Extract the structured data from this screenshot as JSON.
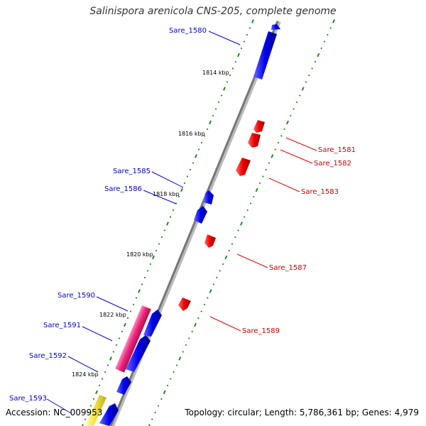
{
  "title": "Salinispora arenicola CNS-205, complete genome",
  "footer": {
    "accession": "Accession: NC_009953",
    "summary": "Topology: circular; Length: 5,786,361 bp; Genes: 4,979"
  },
  "colors": {
    "forward_cds": "#0000ee",
    "reverse_cds": "#ee0000",
    "rna": "#ee2277",
    "other": "#f0e040",
    "backbone": "#888888",
    "ticks": "#228822"
  },
  "kbp_labels": [
    "1814 kbp",
    "1816 kbp",
    "1818 kbp",
    "1820 kbp",
    "1822 kbp",
    "1824 kbp"
  ],
  "genes": [
    {
      "name": "Sare_1580",
      "strand": "forward"
    },
    {
      "name": "Sare_1581",
      "strand": "reverse"
    },
    {
      "name": "Sare_1582",
      "strand": "reverse"
    },
    {
      "name": "Sare_1583",
      "strand": "reverse"
    },
    {
      "name": "Sare_1585",
      "strand": "forward"
    },
    {
      "name": "Sare_1586",
      "strand": "forward"
    },
    {
      "name": "Sare_1587",
      "strand": "reverse"
    },
    {
      "name": "Sare_1589",
      "strand": "reverse"
    },
    {
      "name": "Sare_1590",
      "strand": "forward"
    },
    {
      "name": "Sare_1591",
      "strand": "forward"
    },
    {
      "name": "Sare_1592",
      "strand": "forward"
    },
    {
      "name": "Sare_1593",
      "strand": "forward"
    }
  ]
}
